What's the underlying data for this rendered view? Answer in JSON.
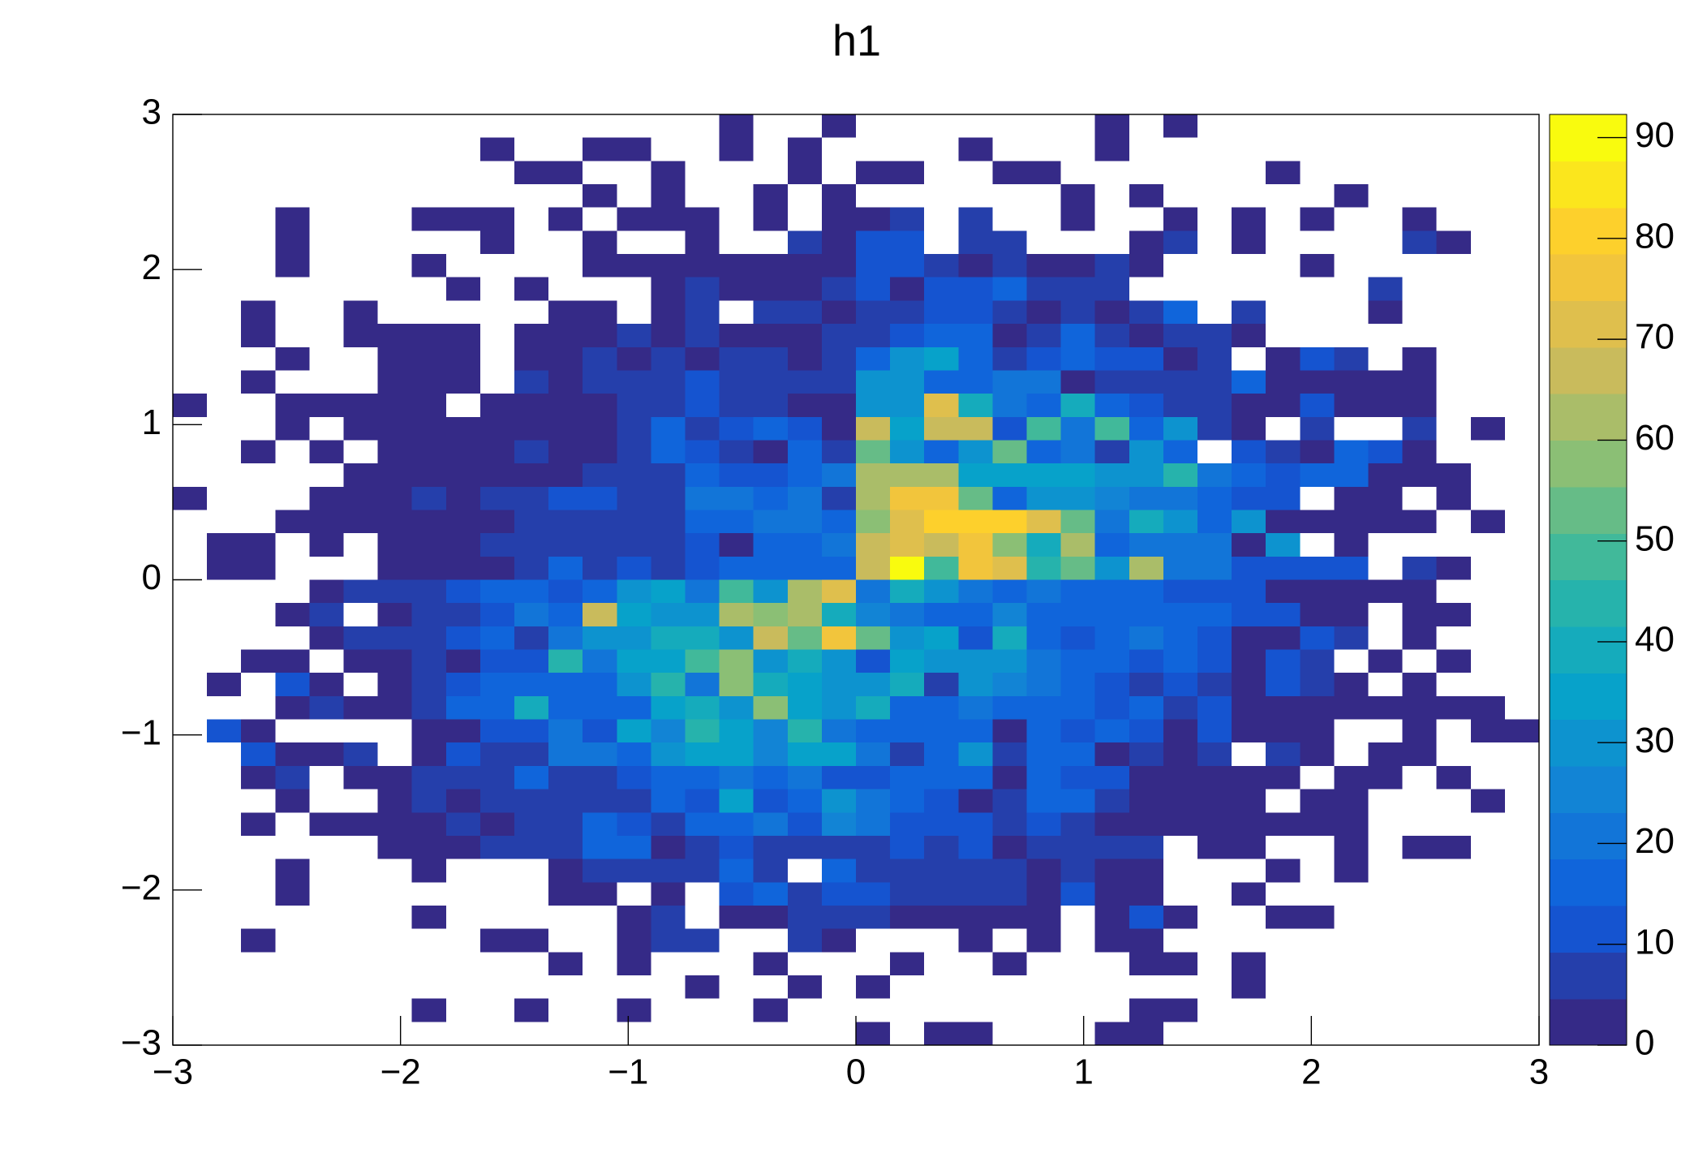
{
  "chart_data": {
    "type": "heatmap",
    "title": "h1",
    "xlim": [
      -3,
      3
    ],
    "ylim": [
      -3,
      3
    ],
    "zlim": [
      0,
      92.3
    ],
    "xticks": [
      {
        "value": -3,
        "label": "−3"
      },
      {
        "value": -2,
        "label": "−2"
      },
      {
        "value": -1,
        "label": "−1"
      },
      0,
      1,
      2,
      3
    ],
    "yticks": [
      {
        "value": -3,
        "label": "−3"
      },
      {
        "value": -2,
        "label": "−2"
      },
      {
        "value": -1,
        "label": "−1"
      },
      0,
      1,
      2,
      3
    ],
    "zticks": [
      0,
      10,
      20,
      30,
      40,
      50,
      60,
      70,
      80,
      90
    ],
    "z": [
      [
        0,
        0,
        0,
        0,
        0,
        0,
        0,
        0,
        0,
        0,
        0,
        0,
        0,
        0,
        0,
        0,
        1,
        0,
        0,
        1,
        0,
        0,
        0,
        0,
        0,
        0,
        0,
        1,
        0,
        1,
        0,
        0,
        0,
        0,
        0,
        0,
        0,
        0,
        0,
        0
      ],
      [
        0,
        0,
        0,
        0,
        0,
        0,
        0,
        0,
        0,
        1,
        0,
        0,
        1,
        1,
        0,
        0,
        1,
        0,
        1,
        0,
        0,
        0,
        0,
        1,
        0,
        0,
        0,
        1,
        0,
        0,
        0,
        0,
        0,
        0,
        0,
        0,
        0,
        0,
        0,
        0
      ],
      [
        0,
        0,
        0,
        0,
        0,
        0,
        0,
        0,
        0,
        0,
        1,
        1,
        0,
        0,
        1,
        0,
        0,
        0,
        1,
        0,
        1,
        1,
        0,
        0,
        1,
        1,
        0,
        0,
        0,
        0,
        0,
        0,
        1,
        0,
        0,
        0,
        0,
        0,
        0,
        0
      ],
      [
        0,
        0,
        0,
        0,
        0,
        0,
        0,
        0,
        0,
        0,
        0,
        0,
        1,
        0,
        1,
        0,
        0,
        1,
        0,
        1,
        0,
        0,
        0,
        0,
        0,
        0,
        1,
        0,
        1,
        0,
        0,
        0,
        0,
        0,
        1,
        0,
        0,
        0,
        0,
        0
      ],
      [
        0,
        0,
        0,
        1,
        0,
        0,
        0,
        1,
        1,
        1,
        0,
        1,
        0,
        1,
        1,
        1,
        0,
        1,
        0,
        2,
        2,
        6,
        0,
        6,
        0,
        0,
        1,
        0,
        0,
        1,
        0,
        1,
        0,
        1,
        0,
        0,
        1,
        0,
        0,
        0
      ],
      [
        0,
        0,
        0,
        1,
        0,
        0,
        0,
        0,
        0,
        1,
        0,
        0,
        1,
        0,
        0,
        1,
        0,
        0,
        6,
        2,
        12,
        12,
        0,
        8,
        8,
        0,
        0,
        0,
        2,
        8,
        0,
        1,
        0,
        0,
        0,
        0,
        7,
        2,
        0,
        0
      ],
      [
        0,
        0,
        0,
        1,
        0,
        0,
        0,
        1,
        0,
        0,
        0,
        0,
        2,
        2,
        2,
        2,
        2,
        2,
        2,
        2,
        10,
        10,
        8,
        2,
        8,
        3,
        2,
        6,
        2,
        0,
        0,
        0,
        0,
        1,
        0,
        0,
        0,
        0,
        0,
        0
      ],
      [
        0,
        0,
        0,
        0,
        0,
        0,
        0,
        0,
        1,
        0,
        1,
        0,
        0,
        0,
        2,
        6,
        2,
        2,
        2,
        6,
        10,
        3,
        10,
        12,
        16,
        6,
        6,
        6,
        0,
        0,
        0,
        0,
        0,
        0,
        0,
        7,
        0,
        0,
        0,
        0
      ],
      [
        0,
        0,
        1,
        0,
        0,
        1,
        0,
        0,
        0,
        0,
        0,
        2,
        2,
        0,
        2,
        6,
        0,
        5,
        5,
        2,
        8,
        8,
        12,
        10,
        6,
        3,
        8,
        2,
        8,
        15,
        0,
        7,
        0,
        0,
        0,
        2,
        0,
        0,
        0,
        0
      ],
      [
        0,
        0,
        1,
        0,
        0,
        2,
        2,
        2,
        2,
        0,
        2,
        2,
        2,
        5,
        2,
        7,
        2,
        2,
        2,
        7,
        8,
        12,
        15,
        15,
        2,
        8,
        15,
        8,
        2,
        8,
        6,
        2,
        0,
        0,
        0,
        0,
        0,
        0,
        0,
        0
      ],
      [
        0,
        0,
        0,
        1,
        0,
        0,
        2,
        2,
        2,
        0,
        2,
        2,
        6,
        2,
        5,
        2,
        6,
        6,
        2,
        6,
        15,
        30,
        33,
        18,
        8,
        10,
        18,
        10,
        10,
        2,
        6,
        0,
        2,
        10,
        8,
        0,
        2,
        0,
        0,
        0
      ],
      [
        0,
        0,
        1,
        0,
        0,
        0,
        2,
        2,
        2,
        0,
        6,
        2,
        6,
        8,
        6,
        10,
        7,
        7,
        6,
        7,
        30,
        30,
        18,
        16,
        20,
        22,
        2,
        8,
        6,
        6,
        8,
        14,
        2,
        2,
        2,
        2,
        2,
        0,
        0,
        0
      ],
      [
        2,
        0,
        0,
        2,
        2,
        2,
        2,
        2,
        0,
        2,
        2,
        2,
        2,
        8,
        8,
        10,
        8,
        8,
        2,
        3,
        32,
        32,
        70,
        40,
        22,
        16,
        38,
        18,
        12,
        8,
        8,
        2,
        2,
        10,
        2,
        2,
        2,
        0,
        0,
        0
      ],
      [
        0,
        0,
        0,
        2,
        0,
        2,
        2,
        2,
        2,
        2,
        2,
        2,
        2,
        8,
        15,
        8,
        10,
        18,
        10,
        3,
        65,
        35,
        65,
        65,
        10,
        50,
        20,
        48,
        18,
        28,
        8,
        2,
        0,
        7,
        0,
        0,
        7,
        0,
        2,
        0
      ],
      [
        0,
        0,
        2,
        0,
        2,
        0,
        2,
        2,
        2,
        2,
        7,
        2,
        2,
        8,
        18,
        12,
        8,
        2,
        18,
        8,
        52,
        32,
        18,
        28,
        55,
        18,
        22,
        8,
        30,
        14,
        0,
        10,
        8,
        2,
        18,
        10,
        2,
        0,
        0,
        0
      ],
      [
        0,
        0,
        0,
        0,
        0,
        2,
        2,
        2,
        2,
        2,
        2,
        2,
        8,
        8,
        8,
        16,
        10,
        12,
        16,
        22,
        60,
        63,
        63,
        33,
        35,
        35,
        33,
        30,
        30,
        42,
        20,
        14,
        10,
        16,
        16,
        2,
        2,
        2,
        0,
        0
      ],
      [
        2,
        0,
        0,
        0,
        2,
        2,
        2,
        7,
        2,
        8,
        8,
        10,
        10,
        8,
        8,
        20,
        20,
        18,
        20,
        8,
        62,
        78,
        78,
        52,
        18,
        32,
        28,
        25,
        22,
        20,
        16,
        12,
        10,
        0,
        2,
        2,
        0,
        2,
        0,
        0
      ],
      [
        0,
        0,
        0,
        2,
        2,
        2,
        2,
        2,
        2,
        2,
        8,
        8,
        8,
        8,
        8,
        18,
        18,
        20,
        20,
        18,
        58,
        72,
        82,
        82,
        80,
        72,
        55,
        22,
        38,
        30,
        18,
        28,
        2,
        2,
        2,
        2,
        2,
        0,
        2,
        0
      ],
      [
        0,
        2,
        2,
        0,
        2,
        0,
        2,
        2,
        2,
        6,
        8,
        8,
        8,
        8,
        8,
        10,
        3,
        16,
        18,
        20,
        65,
        72,
        65,
        75,
        58,
        40,
        62,
        18,
        20,
        20,
        20,
        3,
        28,
        0,
        2,
        0,
        0,
        0,
        0,
        0
      ],
      [
        0,
        2,
        2,
        0,
        0,
        0,
        2,
        2,
        2,
        2,
        7,
        16,
        8,
        12,
        8,
        10,
        16,
        18,
        18,
        18,
        66,
        92,
        50,
        78,
        72,
        42,
        52,
        30,
        60,
        22,
        22,
        12,
        12,
        10,
        10,
        0,
        8,
        2,
        0,
        0
      ],
      [
        0,
        0,
        0,
        0,
        2,
        8,
        8,
        8,
        12,
        16,
        16,
        10,
        18,
        30,
        35,
        22,
        48,
        30,
        62,
        70,
        20,
        40,
        32,
        20,
        18,
        22,
        18,
        18,
        14,
        12,
        12,
        10,
        2,
        2,
        2,
        2,
        2,
        0,
        0,
        0
      ],
      [
        0,
        0,
        0,
        2,
        8,
        0,
        2,
        8,
        8,
        12,
        20,
        16,
        65,
        35,
        32,
        32,
        60,
        58,
        62,
        40,
        25,
        22,
        14,
        16,
        24,
        14,
        16,
        14,
        14,
        14,
        14,
        10,
        10,
        2,
        2,
        0,
        2,
        2,
        0,
        0
      ],
      [
        0,
        0,
        0,
        0,
        2,
        8,
        8,
        8,
        10,
        16,
        8,
        20,
        32,
        30,
        40,
        40,
        32,
        65,
        55,
        75,
        52,
        28,
        33,
        12,
        38,
        18,
        12,
        18,
        20,
        14,
        12,
        2,
        2,
        10,
        8,
        0,
        2,
        0,
        0,
        0
      ],
      [
        0,
        0,
        2,
        2,
        0,
        2,
        2,
        8,
        2,
        10,
        12,
        45,
        20,
        35,
        35,
        50,
        56,
        28,
        38,
        28,
        12,
        33,
        28,
        28,
        28,
        20,
        16,
        16,
        12,
        16,
        10,
        2,
        12,
        8,
        0,
        2,
        0,
        2,
        0,
        0
      ],
      [
        0,
        2,
        0,
        10,
        2,
        0,
        2,
        8,
        10,
        18,
        18,
        18,
        18,
        32,
        42,
        20,
        58,
        40,
        33,
        32,
        32,
        40,
        8,
        32,
        24,
        20,
        18,
        12,
        8,
        12,
        8,
        2,
        12,
        8,
        2,
        0,
        2,
        0,
        0,
        0
      ],
      [
        0,
        0,
        0,
        2,
        8,
        2,
        2,
        8,
        18,
        18,
        38,
        18,
        18,
        18,
        35,
        38,
        30,
        58,
        33,
        30,
        38,
        16,
        18,
        20,
        16,
        16,
        14,
        12,
        14,
        8,
        10,
        2,
        2,
        2,
        2,
        2,
        2,
        2,
        2,
        0
      ],
      [
        0,
        10,
        2,
        0,
        0,
        0,
        0,
        2,
        2,
        10,
        10,
        22,
        12,
        35,
        24,
        45,
        35,
        24,
        45,
        22,
        14,
        16,
        14,
        16,
        3,
        18,
        10,
        18,
        10,
        3,
        10,
        2,
        2,
        2,
        0,
        0,
        2,
        0,
        2,
        2
      ],
      [
        0,
        0,
        10,
        2,
        2,
        8,
        0,
        2,
        10,
        8,
        8,
        20,
        22,
        16,
        32,
        35,
        35,
        24,
        35,
        35,
        22,
        5,
        18,
        28,
        8,
        18,
        18,
        2,
        8,
        2,
        8,
        0,
        8,
        2,
        0,
        2,
        2,
        0,
        0,
        0
      ],
      [
        0,
        0,
        2,
        8,
        0,
        2,
        2,
        8,
        8,
        8,
        18,
        8,
        8,
        12,
        14,
        16,
        20,
        18,
        20,
        12,
        12,
        14,
        14,
        16,
        2,
        18,
        12,
        10,
        2,
        2,
        2,
        2,
        2,
        0,
        2,
        2,
        0,
        2,
        0,
        0
      ],
      [
        0,
        0,
        0,
        2,
        0,
        0,
        2,
        8,
        2,
        8,
        8,
        8,
        8,
        8,
        18,
        12,
        35,
        12,
        18,
        28,
        20,
        14,
        10,
        2,
        8,
        16,
        16,
        8,
        2,
        2,
        2,
        2,
        0,
        2,
        2,
        0,
        0,
        0,
        2,
        0
      ],
      [
        0,
        0,
        2,
        0,
        2,
        2,
        2,
        2,
        8,
        2,
        8,
        8,
        18,
        12,
        8,
        18,
        14,
        22,
        10,
        24,
        20,
        12,
        10,
        12,
        8,
        10,
        8,
        2,
        2,
        2,
        2,
        2,
        2,
        2,
        2,
        0,
        0,
        0,
        0,
        0
      ],
      [
        0,
        0,
        0,
        0,
        0,
        0,
        2,
        2,
        2,
        8,
        8,
        8,
        18,
        18,
        2,
        8,
        10,
        8,
        8,
        8,
        8,
        10,
        8,
        12,
        2,
        8,
        8,
        8,
        8,
        0,
        2,
        2,
        0,
        0,
        2,
        0,
        2,
        2,
        0,
        0
      ],
      [
        0,
        0,
        0,
        1,
        0,
        0,
        0,
        1,
        0,
        0,
        0,
        2,
        8,
        8,
        8,
        8,
        16,
        8,
        0,
        18,
        8,
        8,
        8,
        8,
        8,
        2,
        8,
        2,
        2,
        0,
        0,
        0,
        1,
        0,
        1,
        0,
        0,
        0,
        0,
        0
      ],
      [
        0,
        0,
        0,
        1,
        0,
        0,
        0,
        0,
        0,
        0,
        0,
        2,
        2,
        0,
        2,
        0,
        10,
        16,
        8,
        10,
        12,
        8,
        8,
        8,
        8,
        2,
        12,
        2,
        2,
        0,
        0,
        1,
        0,
        0,
        0,
        0,
        0,
        0,
        0,
        0
      ],
      [
        0,
        0,
        0,
        0,
        0,
        0,
        0,
        1,
        0,
        0,
        0,
        0,
        0,
        2,
        8,
        0,
        2,
        2,
        8,
        8,
        8,
        2,
        2,
        2,
        2,
        2,
        0,
        2,
        12,
        2,
        0,
        0,
        1,
        1,
        0,
        0,
        0,
        0,
        0,
        0
      ],
      [
        0,
        0,
        1,
        0,
        0,
        0,
        0,
        0,
        0,
        1,
        1,
        0,
        0,
        2,
        8,
        8,
        0,
        0,
        8,
        2,
        0,
        0,
        0,
        1,
        0,
        1,
        0,
        2,
        2,
        0,
        0,
        0,
        0,
        0,
        0,
        0,
        0,
        0,
        0,
        0
      ],
      [
        0,
        0,
        0,
        0,
        0,
        0,
        0,
        0,
        0,
        0,
        0,
        1,
        0,
        1,
        0,
        0,
        0,
        1,
        0,
        0,
        0,
        1,
        0,
        0,
        1,
        0,
        0,
        0,
        1,
        1,
        0,
        1,
        0,
        0,
        0,
        0,
        0,
        0,
        0,
        0
      ],
      [
        0,
        0,
        0,
        0,
        0,
        0,
        0,
        0,
        0,
        0,
        0,
        0,
        0,
        0,
        0,
        1,
        0,
        0,
        1,
        0,
        1,
        0,
        0,
        0,
        0,
        0,
        0,
        0,
        0,
        0,
        0,
        1,
        0,
        0,
        0,
        0,
        0,
        0,
        0,
        0
      ],
      [
        0,
        0,
        0,
        0,
        0,
        0,
        0,
        1,
        0,
        0,
        1,
        0,
        0,
        1,
        0,
        0,
        0,
        1,
        0,
        0,
        0,
        0,
        0,
        0,
        0,
        0,
        0,
        0,
        1,
        1,
        0,
        0,
        0,
        0,
        0,
        0,
        0,
        0,
        0,
        0
      ],
      [
        0,
        0,
        0,
        0,
        0,
        0,
        0,
        0,
        0,
        0,
        0,
        0,
        0,
        0,
        0,
        0,
        0,
        0,
        0,
        0,
        1,
        0,
        1,
        1,
        0,
        0,
        0,
        1,
        1,
        0,
        0,
        0,
        0,
        0,
        0,
        0,
        0,
        0,
        0,
        0
      ]
    ]
  }
}
